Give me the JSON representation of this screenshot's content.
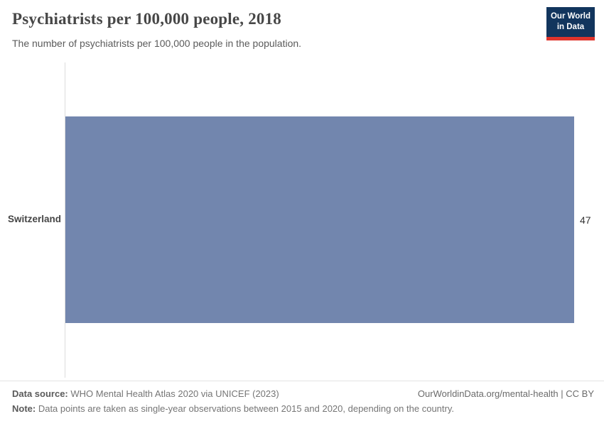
{
  "header": {
    "title": "Psychiatrists per 100,000 people, 2018",
    "subtitle": "The number of psychiatrists per 100,000 people in the population.",
    "logo": {
      "line1": "Our World",
      "line2": "in Data",
      "bg_color": "#12355d",
      "stripe_color": "#e0342c"
    }
  },
  "chart_data": {
    "type": "bar",
    "orientation": "horizontal",
    "title": "Psychiatrists per 100,000 people, 2018",
    "categories": [
      "Switzerland"
    ],
    "values": [
      47
    ],
    "value_labels": [
      "47"
    ],
    "xlim": [
      0,
      47
    ],
    "bar_color": "#7286ae",
    "grid": false,
    "legend": "none"
  },
  "footer": {
    "source_label": "Data source:",
    "source_text": " WHO Mental Health Atlas 2020 via UNICEF (2023)",
    "credit": "OurWorldinData.org/mental-health | CC BY",
    "note_label": "Note:",
    "note_text": " Data points are taken as single-year observations between 2015 and 2020, depending on the country."
  }
}
